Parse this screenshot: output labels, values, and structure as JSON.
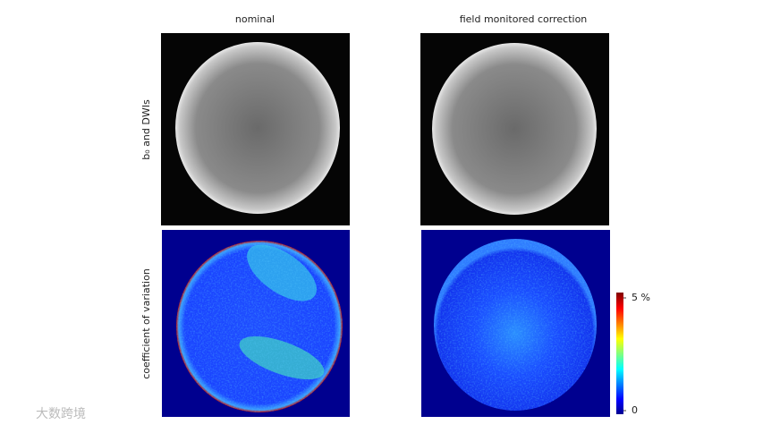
{
  "columns": [
    "nominal",
    "field monitored correction"
  ],
  "rows": [
    "b₀ and DWIs",
    "coefficient of variation"
  ],
  "colorbar": {
    "range": [
      0,
      5
    ],
    "ticks": [
      {
        "value": 5,
        "label": "5 %"
      },
      0
    ]
  },
  "watermark": "大数跨境"
}
